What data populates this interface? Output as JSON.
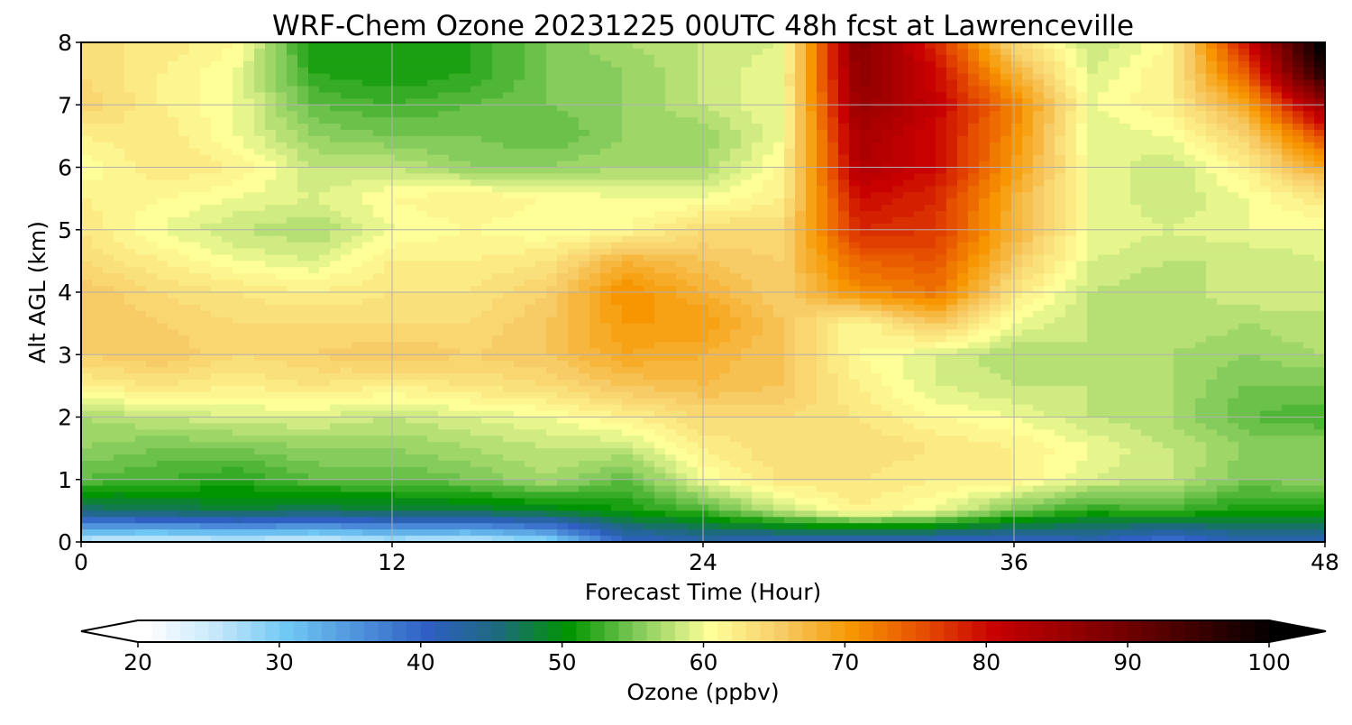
{
  "chart_data": {
    "type": "heatmap",
    "title": "WRF-Chem Ozone  20231225 00UTC 48h fcst at Lawrenceville",
    "xlabel": "Forecast Time (Hour)",
    "ylabel": "Alt AGL (km)",
    "xlim": [
      0,
      48
    ],
    "ylim": [
      0,
      8
    ],
    "xticks": [
      0,
      12,
      24,
      36,
      48
    ],
    "yticks": [
      0,
      1,
      2,
      3,
      4,
      5,
      6,
      7,
      8
    ],
    "grid": true,
    "x": [
      0,
      3,
      6,
      9,
      12,
      15,
      18,
      21,
      24,
      27,
      30,
      33,
      36,
      39,
      42,
      45,
      48
    ],
    "y": [
      0,
      0.5,
      1,
      1.5,
      2,
      2.5,
      3,
      3.5,
      4,
      4.5,
      5,
      5.5,
      6,
      6.5,
      7,
      7.5,
      8
    ],
    "z": [
      [
        25,
        24,
        25,
        24,
        26,
        25,
        28,
        40,
        42,
        41,
        40,
        40,
        40,
        41,
        38,
        42,
        42
      ],
      [
        46,
        47,
        48,
        47,
        48,
        48,
        49,
        51,
        53,
        58,
        62,
        60,
        55,
        52,
        53,
        51,
        51
      ],
      [
        54,
        53,
        52,
        54,
        54,
        55,
        57,
        54,
        60,
        63,
        63,
        62,
        62,
        59,
        58,
        55,
        56
      ],
      [
        56,
        55,
        55,
        56,
        56,
        57,
        58,
        58,
        62,
        64,
        64,
        63,
        62,
        60,
        58,
        56,
        56
      ],
      [
        57,
        58,
        59,
        59,
        58,
        59,
        60,
        62,
        64,
        64,
        63,
        61,
        60,
        58,
        57,
        54,
        53
      ],
      [
        62,
        63,
        62,
        63,
        62,
        63,
        64,
        66,
        67,
        66,
        62,
        59,
        58,
        58,
        57,
        55,
        55
      ],
      [
        65,
        66,
        64,
        65,
        66,
        65,
        66,
        69,
        68,
        66,
        61,
        59,
        57,
        58,
        57,
        56,
        57
      ],
      [
        66,
        65,
        64,
        64,
        64,
        64,
        66,
        70,
        70,
        66,
        61,
        66,
        60,
        58,
        58,
        57,
        58
      ],
      [
        66,
        64,
        63,
        62,
        63,
        63,
        65,
        71,
        68,
        65,
        71,
        73,
        63,
        58,
        57,
        59,
        58
      ],
      [
        64,
        62,
        60,
        59,
        62,
        62,
        63,
        68,
        66,
        65,
        74,
        75,
        66,
        59,
        58,
        58,
        59
      ],
      [
        63,
        60,
        58,
        57,
        60,
        61,
        60,
        61,
        64,
        64,
        78,
        77,
        68,
        60,
        59,
        60,
        60
      ],
      [
        62,
        61,
        60,
        59,
        61,
        62,
        61,
        60,
        60,
        62,
        80,
        78,
        68,
        60,
        58,
        60,
        63
      ],
      [
        60,
        63,
        62,
        58,
        58,
        56,
        56,
        57,
        57,
        61,
        83,
        80,
        70,
        60,
        58,
        62,
        69
      ],
      [
        62,
        63,
        60,
        56,
        55,
        55,
        54,
        56,
        56,
        60,
        84,
        80,
        71,
        59,
        60,
        65,
        76
      ],
      [
        65,
        62,
        60,
        54,
        53,
        54,
        55,
        56,
        58,
        60,
        86,
        81,
        72,
        60,
        62,
        69,
        86
      ],
      [
        64,
        62,
        60,
        52,
        51,
        52,
        55,
        56,
        58,
        60,
        87,
        80,
        68,
        59,
        62,
        75,
        98
      ],
      [
        63,
        63,
        61,
        51,
        51,
        52,
        55,
        57,
        58,
        59,
        88,
        78,
        64,
        58,
        61,
        80,
        102
      ]
    ],
    "colorbar": {
      "label": "Ozone  (ppbv)",
      "min": 20,
      "max": 100,
      "step": 1,
      "ticks": [
        20,
        30,
        40,
        50,
        60,
        70,
        80,
        90,
        100
      ],
      "extend": "both",
      "color_stops": [
        {
          "v": 20,
          "c": "#ffffff"
        },
        {
          "v": 25,
          "c": "#c7e8fa"
        },
        {
          "v": 30,
          "c": "#70c8f5"
        },
        {
          "v": 40,
          "c": "#2f5fc3"
        },
        {
          "v": 45,
          "c": "#1d6a7d"
        },
        {
          "v": 50,
          "c": "#009500"
        },
        {
          "v": 55,
          "c": "#86cc5c"
        },
        {
          "v": 60,
          "c": "#ffff99"
        },
        {
          "v": 65,
          "c": "#f7cc66"
        },
        {
          "v": 70,
          "c": "#f79600"
        },
        {
          "v": 75,
          "c": "#e64f00"
        },
        {
          "v": 80,
          "c": "#c80000"
        },
        {
          "v": 90,
          "c": "#6b0000"
        },
        {
          "v": 100,
          "c": "#000000"
        }
      ]
    }
  }
}
